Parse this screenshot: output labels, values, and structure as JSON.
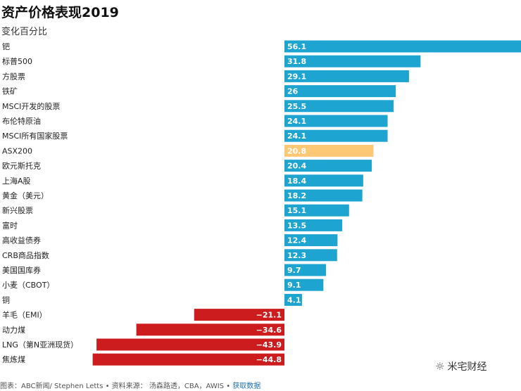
{
  "chart_data": {
    "type": "bar",
    "orientation": "horizontal",
    "title": "资产价格表现2019",
    "subtitle": "变化百分比",
    "categories": [
      "钯",
      "标普500",
      "方股票",
      "铁矿",
      "MSCI开发的股票",
      "布伦特原油",
      "MSCI所有国家股票",
      "ASX200",
      "欧元斯托克",
      "上海A股",
      "黄金（美元）",
      "新兴股票",
      "富时",
      "高收益债券",
      "CRB商品指数",
      "美国国库券",
      "小麦（CBOT）",
      "铜",
      "羊毛（EMI）",
      "动力煤",
      "LNG（第N亚洲现货）",
      "焦炼煤"
    ],
    "values": [
      56.1,
      31.8,
      29.1,
      26,
      25.5,
      24.1,
      24.1,
      20.8,
      20.4,
      18.4,
      18.2,
      15.1,
      13.5,
      12.4,
      12.3,
      9.7,
      9.1,
      4.1,
      -21.1,
      -34.6,
      -43.9,
      -44.8
    ],
    "value_labels": [
      "56.1",
      "31.8",
      "29.1",
      "26",
      "25.5",
      "24.1",
      "24.1",
      "20.8",
      "20.4",
      "18.4",
      "18.2",
      "15.1",
      "13.5",
      "12.4",
      "12.3",
      "9.7",
      "9.1",
      "4.1",
      "−21.1",
      "−34.6",
      "−43.9",
      "−44.8"
    ],
    "highlight": "ASX200",
    "colors": {
      "positive": "#1ea4d0",
      "highlight": "#fcc876",
      "negative": "#cc1c1d"
    },
    "xlim": [
      -50,
      56.1
    ],
    "grid": false,
    "legend": "none"
  },
  "footer": {
    "text": "图表：ABC新闻/ Stephen Letts • 资料来源： 汤森路透，CBA，AWIS • ",
    "link": "获取数据"
  },
  "watermark": {
    "icon": "wechat-icon",
    "text": "米宅财经"
  }
}
